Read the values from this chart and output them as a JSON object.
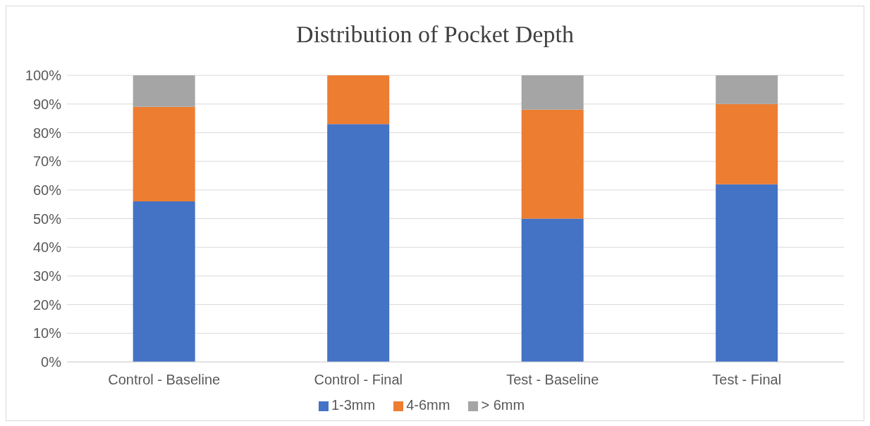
{
  "chart_data": {
    "type": "bar",
    "title": "Distribution of Pocket Depth",
    "stacked": true,
    "categories": [
      "Control - Baseline",
      "Control - Final",
      "Test - Baseline",
      "Test - Final"
    ],
    "series": [
      {
        "name": "1-3mm",
        "color": "#4472c4",
        "values": [
          56,
          83,
          50,
          62
        ]
      },
      {
        "name": "4-6mm",
        "color": "#ed7d31",
        "values": [
          33,
          17,
          38,
          28
        ]
      },
      {
        "name": "> 6mm",
        "color": "#a5a5a5",
        "values": [
          11,
          0,
          12,
          10
        ]
      }
    ],
    "ylim": [
      0,
      100
    ],
    "yticks": [
      {
        "value": 0,
        "label": "0%"
      },
      {
        "value": 10,
        "label": "10%"
      },
      {
        "value": 20,
        "label": "20%"
      },
      {
        "value": 30,
        "label": "30%"
      },
      {
        "value": 40,
        "label": "40%"
      },
      {
        "value": 50,
        "label": "50%"
      },
      {
        "value": 60,
        "label": "60%"
      },
      {
        "value": 70,
        "label": "70%"
      },
      {
        "value": 80,
        "label": "80%"
      },
      {
        "value": 90,
        "label": "90%"
      },
      {
        "value": 100,
        "label": "100%"
      }
    ],
    "grid": "y",
    "legend": "bottom"
  }
}
